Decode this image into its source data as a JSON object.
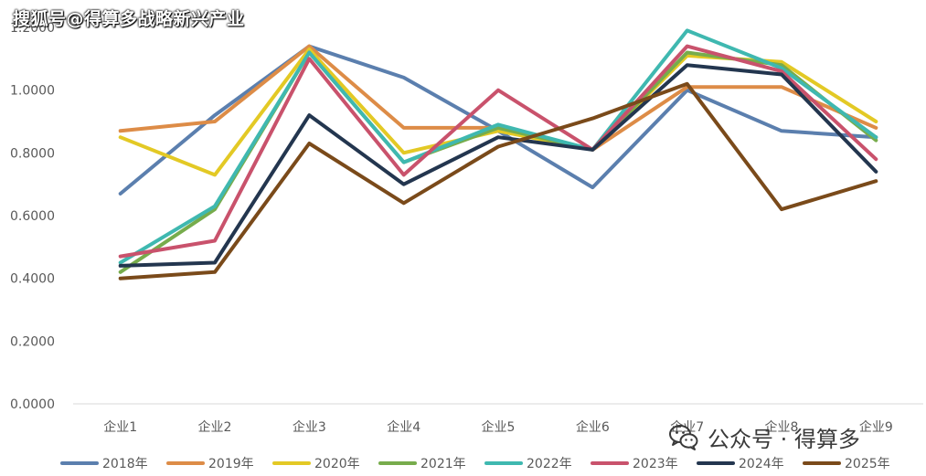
{
  "watermarks": {
    "top": "搜狐号@得算多战略新兴产业",
    "bottom": "公众号 · 得算多",
    "bottom_icon": "wechat-icon"
  },
  "chart_data": {
    "type": "line",
    "title": "",
    "xlabel": "",
    "ylabel": "",
    "categories": [
      "企业1",
      "企业2",
      "企业3",
      "企业4",
      "企业5",
      "企业6",
      "企业7",
      "企业8",
      "企业9"
    ],
    "ylim": [
      0,
      1.2
    ],
    "y_ticks": [
      "0.0000",
      "0.2000",
      "0.4000",
      "0.6000",
      "0.8000",
      "1.0000",
      "1.2000"
    ],
    "grid": false,
    "legend_position": "bottom",
    "series": [
      {
        "name": "2018年",
        "color": "#5b7fae",
        "values": [
          0.67,
          0.92,
          1.14,
          1.04,
          0.87,
          0.69,
          1.0,
          0.87,
          0.85
        ]
      },
      {
        "name": "2019年",
        "color": "#dd8c47",
        "values": [
          0.87,
          0.9,
          1.14,
          0.88,
          0.88,
          0.81,
          1.01,
          1.01,
          0.88
        ]
      },
      {
        "name": "2020年",
        "color": "#e3c925",
        "values": [
          0.85,
          0.73,
          1.13,
          0.8,
          0.87,
          0.81,
          1.11,
          1.09,
          0.9
        ]
      },
      {
        "name": "2021年",
        "color": "#77ac4c",
        "values": [
          0.42,
          0.62,
          1.12,
          0.77,
          0.88,
          0.81,
          1.12,
          1.08,
          0.84
        ]
      },
      {
        "name": "2022年",
        "color": "#3fb8b0",
        "values": [
          0.45,
          0.63,
          1.12,
          0.77,
          0.89,
          0.81,
          1.19,
          1.07,
          0.85
        ]
      },
      {
        "name": "2023年",
        "color": "#c9526c",
        "values": [
          0.47,
          0.52,
          1.1,
          0.73,
          1.0,
          0.81,
          1.14,
          1.06,
          0.78
        ]
      },
      {
        "name": "2024年",
        "color": "#23364f",
        "values": [
          0.44,
          0.45,
          0.92,
          0.7,
          0.85,
          0.81,
          1.08,
          1.05,
          0.74
        ]
      },
      {
        "name": "2025年",
        "color": "#7a4a1a",
        "values": [
          0.4,
          0.42,
          0.83,
          0.64,
          0.82,
          0.91,
          1.02,
          0.62,
          0.71
        ]
      }
    ]
  }
}
